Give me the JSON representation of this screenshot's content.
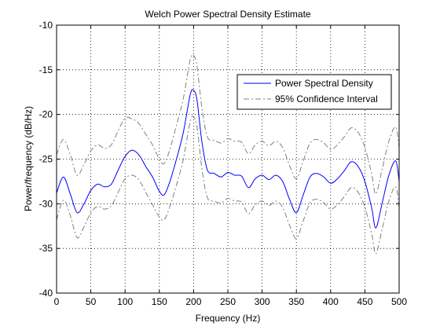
{
  "chart_data": {
    "type": "line",
    "title": "Welch Power Spectral Density Estimate",
    "xlabel": "Frequency (Hz)",
    "ylabel": "Power/frequency (dB/Hz)",
    "xlim": [
      0,
      500
    ],
    "ylim": [
      -40,
      -10
    ],
    "xticks": [
      0,
      50,
      100,
      150,
      200,
      250,
      300,
      350,
      400,
      450,
      500
    ],
    "yticks": [
      -40,
      -35,
      -30,
      -25,
      -20,
      -15,
      -10
    ],
    "grid": true,
    "legend_position": "top-right",
    "x": [
      0,
      10,
      20,
      30,
      40,
      50,
      60,
      70,
      80,
      90,
      100,
      110,
      120,
      130,
      140,
      150,
      157,
      165,
      175,
      185,
      195,
      200,
      205,
      212,
      220,
      230,
      240,
      250,
      260,
      270,
      280,
      290,
      300,
      310,
      320,
      330,
      340,
      350,
      360,
      370,
      380,
      390,
      400,
      410,
      420,
      430,
      440,
      450,
      460,
      466,
      475,
      485,
      495,
      500
    ],
    "series": [
      {
        "name": "Power Spectral Density",
        "color": "#0000ff",
        "style": "solid",
        "values": [
          -28.8,
          -27.0,
          -28.9,
          -31.0,
          -30.0,
          -28.5,
          -27.8,
          -28.1,
          -27.8,
          -26.2,
          -24.7,
          -24.0,
          -24.5,
          -25.8,
          -27.0,
          -28.6,
          -29.0,
          -27.6,
          -25.0,
          -22.0,
          -17.8,
          -17.3,
          -18.4,
          -23.0,
          -26.2,
          -26.6,
          -27.0,
          -26.5,
          -26.8,
          -26.9,
          -28.2,
          -27.2,
          -26.8,
          -27.3,
          -26.8,
          -27.5,
          -29.5,
          -31.0,
          -29.0,
          -27.0,
          -26.6,
          -27.0,
          -27.7,
          -27.2,
          -26.3,
          -25.3,
          -25.8,
          -27.5,
          -30.5,
          -32.7,
          -30.0,
          -26.8,
          -25.2,
          -27.5
        ]
      },
      {
        "name": "95% Confidence Interval",
        "color": "#808080",
        "style": "dash-dot",
        "values": [
          -24.5,
          -22.8,
          -24.5,
          -26.8,
          -25.6,
          -24.1,
          -23.4,
          -23.8,
          -23.4,
          -21.8,
          -20.4,
          -20.5,
          -21.0,
          -22.2,
          -23.4,
          -25.0,
          -25.5,
          -24.0,
          -21.2,
          -18.2,
          -13.9,
          -13.4,
          -14.6,
          -19.2,
          -22.5,
          -22.9,
          -23.2,
          -22.7,
          -23.0,
          -23.1,
          -24.4,
          -23.4,
          -23.0,
          -23.5,
          -23.0,
          -23.7,
          -25.7,
          -27.2,
          -25.2,
          -23.2,
          -22.8,
          -23.2,
          -23.9,
          -23.4,
          -22.5,
          -21.5,
          -22.0,
          -23.7,
          -26.7,
          -28.9,
          -26.2,
          -23.0,
          -21.4,
          -23.7
        ]
      },
      {
        "name": "95% Confidence Interval",
        "color": "#808080",
        "style": "dash-dot",
        "values": [
          -31.8,
          -29.6,
          -31.3,
          -33.8,
          -32.6,
          -31.0,
          -30.3,
          -30.6,
          -30.2,
          -28.7,
          -27.2,
          -26.8,
          -27.3,
          -28.7,
          -30.1,
          -31.5,
          -31.8,
          -30.4,
          -27.9,
          -25.0,
          -20.8,
          -20.3,
          -21.4,
          -26.0,
          -29.3,
          -29.7,
          -29.9,
          -29.4,
          -29.7,
          -29.8,
          -31.1,
          -30.1,
          -29.7,
          -30.2,
          -29.7,
          -30.4,
          -32.4,
          -33.9,
          -31.9,
          -29.9,
          -29.5,
          -29.9,
          -30.6,
          -30.1,
          -29.2,
          -28.2,
          -28.7,
          -30.4,
          -33.4,
          -35.6,
          -32.9,
          -29.7,
          -28.1,
          -30.4
        ]
      }
    ],
    "legend": [
      {
        "label": "Power Spectral Density",
        "color": "#0000ff",
        "style": "solid"
      },
      {
        "label": "95% Confidence Interval",
        "color": "#808080",
        "style": "dash-dot"
      }
    ]
  }
}
